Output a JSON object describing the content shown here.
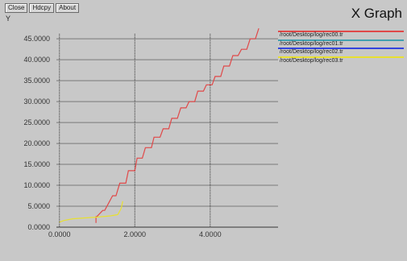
{
  "toolbar": {
    "close_label": "Close",
    "hdcpy_label": "Hdcpy",
    "about_label": "About"
  },
  "app_title": "X Graph",
  "colors": {
    "background": "#c8c8c8",
    "grid": "#7a7a7a",
    "axis": "#333333",
    "tick_text": "#333333"
  },
  "chart_data": {
    "type": "line",
    "ylabel": "Y",
    "xlabel": "",
    "xlim": [
      -0.08,
      5.8
    ],
    "ylim": [
      0,
      48.5
    ],
    "grid": true,
    "x_ticks": [
      0,
      2,
      4
    ],
    "x_tick_labels": [
      "0.0000",
      "2.0000",
      "4.0000"
    ],
    "y_ticks": [
      0,
      5,
      10,
      15,
      20,
      25,
      30,
      35,
      40,
      45
    ],
    "y_tick_labels": [
      "0.0000",
      "5.0000",
      "10.0000",
      "15.0000",
      "20.0000",
      "25.0000",
      "30.0000",
      "35.0000",
      "40.0000",
      "45.0000"
    ],
    "legend_position": "top-right",
    "series": [
      {
        "name": "/root/Desktop/log/rec00.tr",
        "color": "#e04848",
        "x": [
          0.97,
          0.97,
          0.99,
          1.15,
          1.2,
          1.41,
          1.5,
          1.6,
          1.76,
          1.83,
          2.0,
          2.06,
          2.2,
          2.28,
          2.44,
          2.51,
          2.67,
          2.75,
          2.9,
          2.98,
          3.13,
          3.22,
          3.36,
          3.44,
          3.59,
          3.67,
          3.82,
          3.9,
          4.05,
          4.13,
          4.28,
          4.36,
          4.51,
          4.6,
          4.74,
          4.83,
          4.97,
          5.06,
          5.2,
          5.29
        ],
        "y": [
          1.0,
          2.5,
          2.5,
          4.0,
          4.0,
          7.5,
          7.5,
          10.5,
          10.5,
          13.5,
          13.5,
          16.5,
          16.5,
          19.0,
          19.0,
          21.5,
          21.5,
          23.5,
          23.5,
          26.0,
          26.0,
          28.5,
          28.5,
          30.0,
          30.0,
          32.5,
          32.5,
          34.0,
          34.0,
          36.0,
          36.0,
          38.5,
          38.5,
          41.0,
          41.0,
          42.5,
          42.5,
          45.0,
          45.0,
          47.5
        ]
      },
      {
        "name": "/root/Desktop/log/rec01.tr",
        "color": "#40a0b0",
        "x": [],
        "y": []
      },
      {
        "name": "/root/Desktop/log/rec02.tr",
        "color": "#3344dd",
        "x": [],
        "y": []
      },
      {
        "name": "/root/Desktop/log/rec03.tr",
        "color": "#e8e030",
        "x": [
          0.0,
          0.12,
          0.35,
          0.65,
          1.0,
          1.35,
          1.55,
          1.64,
          1.68
        ],
        "y": [
          1.2,
          1.6,
          2.0,
          2.2,
          2.4,
          2.7,
          3.0,
          4.5,
          6.2
        ]
      }
    ]
  }
}
